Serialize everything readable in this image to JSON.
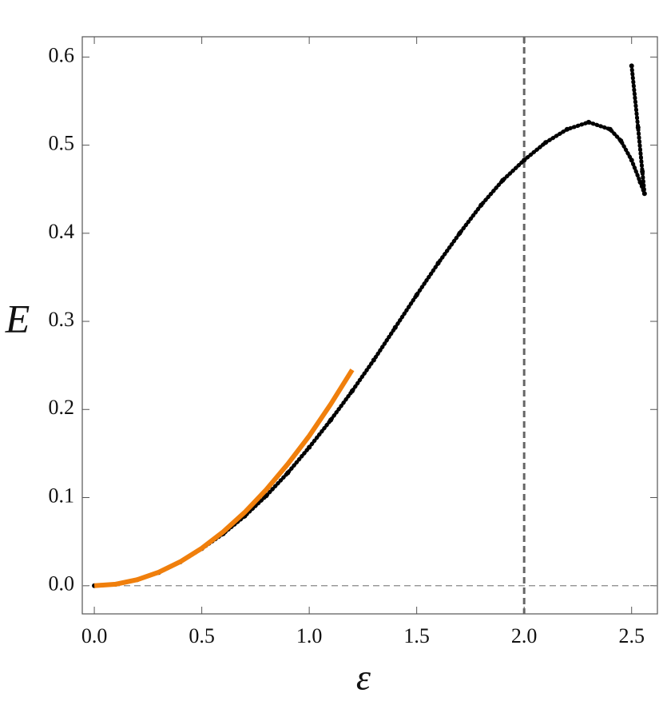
{
  "chart_data": {
    "type": "line",
    "xlabel": "ε",
    "ylabel": "E",
    "xlim": [
      -0.056,
      2.62
    ],
    "ylim": [
      -0.032,
      0.623
    ],
    "xticks": [
      {
        "value": 0,
        "label": "0.0"
      },
      0.5,
      {
        "value": 1,
        "label": "1.0"
      },
      1.5,
      {
        "value": 2,
        "label": "2.0"
      },
      2.5
    ],
    "yticks": [
      {
        "value": 0,
        "label": "0.0"
      },
      0.1,
      0.2,
      0.3,
      0.4,
      0.5,
      0.6
    ],
    "vline": 2.0,
    "hline": 0,
    "series": [
      {
        "color": "#000000",
        "style": "dots",
        "x": [
          0,
          0.1,
          0.2,
          0.3,
          0.4,
          0.5,
          0.6,
          0.7,
          0.8,
          0.9,
          1.0,
          1.1,
          1.2,
          1.3,
          1.4,
          1.5,
          1.6,
          1.7,
          1.8,
          1.9,
          2.0,
          2.1,
          2.2,
          2.3,
          2.4,
          2.45,
          2.5,
          2.54,
          2.56,
          2.55,
          2.53,
          2.5
        ],
        "values": [
          0,
          0.0017,
          0.0068,
          0.015,
          0.027,
          0.042,
          0.059,
          0.079,
          0.102,
          0.128,
          0.157,
          0.188,
          0.221,
          0.256,
          0.293,
          0.33,
          0.366,
          0.4,
          0.432,
          0.46,
          0.483,
          0.503,
          0.518,
          0.526,
          0.518,
          0.505,
          0.483,
          0.458,
          0.445,
          0.47,
          0.52,
          0.59
        ]
      },
      {
        "color": "#f07f0c",
        "style": "line",
        "x": [
          0,
          0.1,
          0.2,
          0.3,
          0.4,
          0.5,
          0.6,
          0.7,
          0.8,
          0.9,
          1.0,
          1.1,
          1.2
        ],
        "values": [
          0,
          0.0017,
          0.0068,
          0.0153,
          0.0272,
          0.0425,
          0.0612,
          0.0833,
          0.109,
          0.138,
          0.17,
          0.206,
          0.245
        ]
      }
    ]
  }
}
